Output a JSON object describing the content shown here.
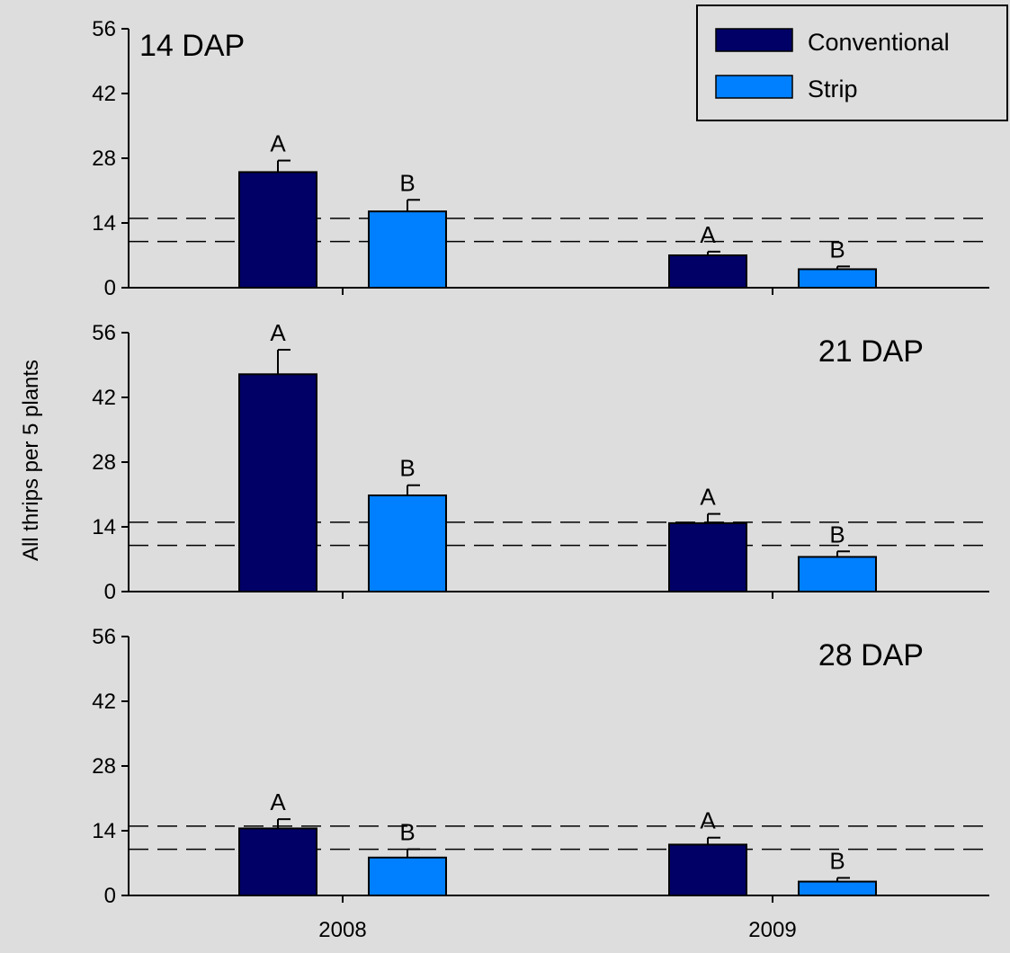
{
  "chart_data": {
    "type": "bar",
    "ylabel": "All thrips per 5 plants",
    "categories": [
      "2008",
      "2009"
    ],
    "ylim": [
      0,
      56
    ],
    "yticks": [
      0,
      14,
      28,
      42,
      56
    ],
    "reference_lines": [
      10,
      15
    ],
    "grid": false,
    "legend": {
      "placement": "top-right",
      "entries": [
        {
          "name": "Conventional",
          "color": "#000066"
        },
        {
          "name": "Strip",
          "color": "#0080ff"
        }
      ]
    },
    "panels": [
      {
        "label": "14 DAP",
        "series": [
          {
            "name": "Conventional",
            "values": [
              25,
              7
            ],
            "errors": [
              2.5,
              0.8
            ],
            "letters": [
              "A",
              "A"
            ]
          },
          {
            "name": "Strip",
            "values": [
              16.5,
              4
            ],
            "errors": [
              2.5,
              0.6
            ],
            "letters": [
              "B",
              "B"
            ]
          }
        ]
      },
      {
        "label": "21 DAP",
        "series": [
          {
            "name": "Conventional",
            "values": [
              47,
              14.8
            ],
            "errors": [
              5.3,
              2
            ],
            "letters": [
              "A",
              "A"
            ]
          },
          {
            "name": "Strip",
            "values": [
              20.8,
              7.5
            ],
            "errors": [
              2.2,
              1.2
            ],
            "letters": [
              "B",
              "B"
            ]
          }
        ]
      },
      {
        "label": "28 DAP",
        "series": [
          {
            "name": "Conventional",
            "values": [
              14.5,
              11
            ],
            "errors": [
              2,
              1.5
            ],
            "letters": [
              "A",
              "A"
            ]
          },
          {
            "name": "Strip",
            "values": [
              8.2,
              3
            ],
            "errors": [
              1.8,
              0.8
            ],
            "letters": [
              "B",
              "B"
            ]
          }
        ]
      }
    ]
  }
}
